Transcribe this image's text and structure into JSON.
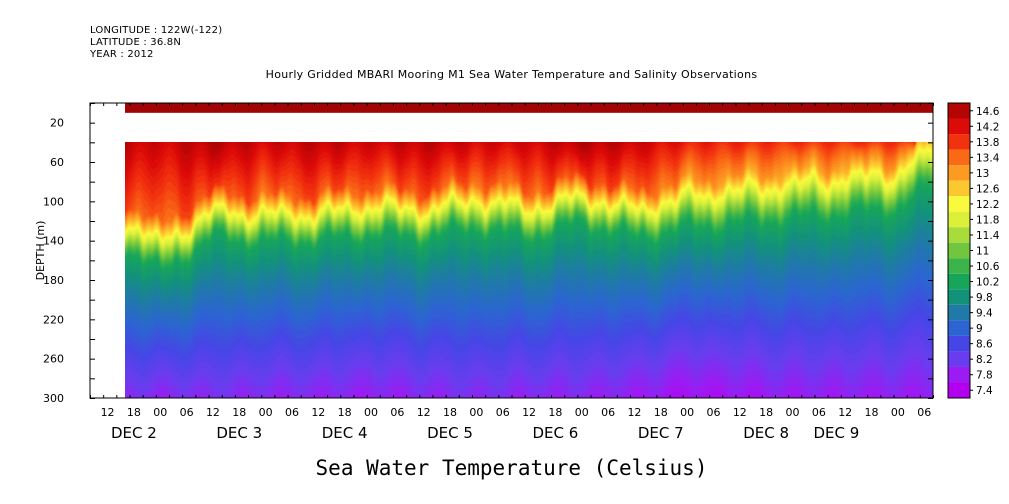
{
  "header": {
    "longitude": "LONGITUDE : 122W(-122)",
    "latitude": "LATITUDE : 36.8N",
    "year": "YEAR : 2012"
  },
  "chart_data": {
    "type": "heatmap",
    "title": "Hourly Gridded MBARI Mooring M1 Sea Water Temperature and Salinity Observations",
    "xlabel": "",
    "ylabel": "DEPTH (m)",
    "colorbar_title": "Sea Water Temperature (Celsius)",
    "x_unit": "hours since DEC 1 2012 00:00",
    "xlim": [
      8,
      200
    ],
    "ylim": [
      300,
      0
    ],
    "y_ticks": [
      20,
      60,
      100,
      140,
      180,
      220,
      260,
      300
    ],
    "y_minor_step": 20,
    "x_hour_labels": [
      {
        "h": 12,
        "label": "12"
      },
      {
        "h": 18,
        "label": "18"
      },
      {
        "h": 24,
        "label": "00"
      },
      {
        "h": 30,
        "label": "06"
      },
      {
        "h": 36,
        "label": "12"
      },
      {
        "h": 42,
        "label": "18"
      },
      {
        "h": 48,
        "label": "00"
      },
      {
        "h": 54,
        "label": "06"
      },
      {
        "h": 60,
        "label": "12"
      },
      {
        "h": 66,
        "label": "18"
      },
      {
        "h": 72,
        "label": "00"
      },
      {
        "h": 78,
        "label": "06"
      },
      {
        "h": 84,
        "label": "12"
      },
      {
        "h": 90,
        "label": "18"
      },
      {
        "h": 96,
        "label": "00"
      },
      {
        "h": 102,
        "label": "06"
      },
      {
        "h": 108,
        "label": "12"
      },
      {
        "h": 114,
        "label": "18"
      },
      {
        "h": 120,
        "label": "00"
      },
      {
        "h": 126,
        "label": "06"
      },
      {
        "h": 132,
        "label": "12"
      },
      {
        "h": 138,
        "label": "18"
      },
      {
        "h": 144,
        "label": "00"
      },
      {
        "h": 150,
        "label": "06"
      },
      {
        "h": 156,
        "label": "12"
      },
      {
        "h": 162,
        "label": "18"
      },
      {
        "h": 168,
        "label": "00"
      },
      {
        "h": 174,
        "label": "06"
      },
      {
        "h": 180,
        "label": "12"
      },
      {
        "h": 186,
        "label": "18"
      },
      {
        "h": 192,
        "label": "00"
      },
      {
        "h": 198,
        "label": "06"
      }
    ],
    "x_day_labels": [
      {
        "h": 18,
        "label": "DEC  2"
      },
      {
        "h": 42,
        "label": "DEC  3"
      },
      {
        "h": 66,
        "label": "DEC  4"
      },
      {
        "h": 90,
        "label": "DEC  5"
      },
      {
        "h": 114,
        "label": "DEC  6"
      },
      {
        "h": 138,
        "label": "DEC  7"
      },
      {
        "h": 162,
        "label": "DEC  8"
      },
      {
        "h": 178,
        "label": "DEC  9"
      }
    ],
    "data_start_hour": 16,
    "depth_layers": [
      {
        "from": 0,
        "to": 10,
        "value": 14.9
      },
      {
        "from": 10,
        "to": 40,
        "value": null
      }
    ],
    "time_series": {
      "hours": [
        16,
        24,
        36,
        48,
        60,
        72,
        84,
        96,
        108,
        120,
        132,
        144,
        156,
        168,
        180,
        192,
        200
      ],
      "thermocline_depth_m": [
        125,
        150,
        115,
        120,
        118,
        112,
        115,
        105,
        115,
        100,
        115,
        105,
        100,
        95,
        90,
        85,
        60
      ],
      "surface_temp_c": [
        14.5,
        14.3,
        14.6,
        14.3,
        14.5,
        14.3,
        14.5,
        14.3,
        14.3,
        14.6,
        14.4,
        14.0,
        13.9,
        13.8,
        13.8,
        13.8,
        13.7
      ],
      "bottom_temp_c": [
        8.0,
        7.9,
        8.0,
        7.9,
        7.9,
        7.8,
        7.9,
        8.0,
        7.9,
        7.9,
        7.8,
        7.6,
        7.7,
        7.8,
        7.8,
        7.8,
        7.8
      ]
    },
    "colorbar": {
      "labels": [
        "14.6",
        "14.2",
        "13.8",
        "13.4",
        "13",
        "12.6",
        "12.2",
        "11.8",
        "11.4",
        "11",
        "10.6",
        "10.2",
        "9.8",
        "9.4",
        "9",
        "8.6",
        "8.2",
        "7.8",
        "7.4"
      ],
      "min": 7.4,
      "max": 14.8,
      "colors": [
        {
          "v": 7.4,
          "c": "#b400f0"
        },
        {
          "v": 7.8,
          "c": "#9a1cf2"
        },
        {
          "v": 8.2,
          "c": "#6a3cf0"
        },
        {
          "v": 8.6,
          "c": "#4646e6"
        },
        {
          "v": 9.0,
          "c": "#2c64d2"
        },
        {
          "v": 9.4,
          "c": "#1f7aa8"
        },
        {
          "v": 9.8,
          "c": "#13927a"
        },
        {
          "v": 10.2,
          "c": "#17a55a"
        },
        {
          "v": 10.6,
          "c": "#3cb44a"
        },
        {
          "v": 11.0,
          "c": "#72c63e"
        },
        {
          "v": 11.4,
          "c": "#a8dc3a"
        },
        {
          "v": 11.8,
          "c": "#dcf03a"
        },
        {
          "v": 12.2,
          "c": "#fafa3c"
        },
        {
          "v": 12.6,
          "c": "#fcc830"
        },
        {
          "v": 13.0,
          "c": "#fc9a22"
        },
        {
          "v": 13.4,
          "c": "#fa6a16"
        },
        {
          "v": 13.8,
          "c": "#f2320e"
        },
        {
          "v": 14.2,
          "c": "#dc0a08"
        },
        {
          "v": 14.6,
          "c": "#b40404"
        },
        {
          "v": 14.8,
          "c": "#a00404"
        }
      ]
    },
    "grid": false,
    "legend": "right"
  }
}
